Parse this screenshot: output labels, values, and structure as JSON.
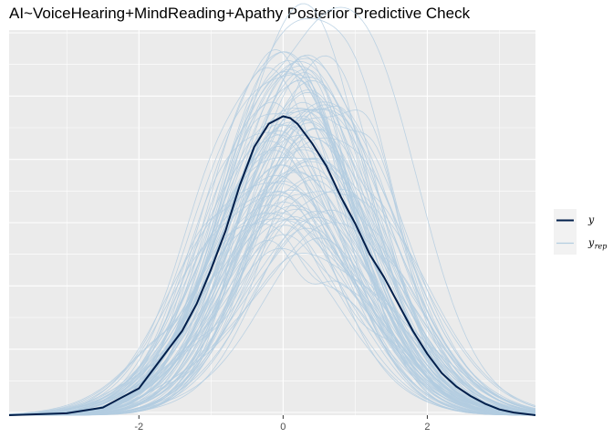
{
  "title": "AI~VoiceHearing+MindReading+Apathy Posterior Predictive Check",
  "chart_data": {
    "type": "line",
    "title": "AI~VoiceHearing+MindReading+Apathy Posterior Predictive Check",
    "xlabel": "",
    "ylabel": "",
    "xlim": [
      -3.8,
      3.5
    ],
    "ylim": [
      0,
      1
    ],
    "x_ticks": [
      "-2",
      "0",
      "2"
    ],
    "x_tick_values": [
      -2,
      0,
      2
    ],
    "y_axis_labels_shown": false,
    "grid": true,
    "legend_position": "right",
    "legend": [
      {
        "key": "y",
        "label": "y",
        "sub": ""
      },
      {
        "key": "yrep",
        "label": "y",
        "sub": "rep"
      }
    ],
    "colors": {
      "y": "#011f4b",
      "yrep": "#b3cde0",
      "panel": "#ebebeb",
      "grid": "#ffffff"
    },
    "series": [
      {
        "name": "y",
        "x": [
          -3.8,
          -3.0,
          -2.5,
          -2.0,
          -1.8,
          -1.6,
          -1.4,
          -1.2,
          -1.0,
          -0.8,
          -0.6,
          -0.4,
          -0.2,
          0.0,
          0.1,
          0.2,
          0.4,
          0.6,
          0.8,
          1.0,
          1.2,
          1.4,
          1.6,
          1.8,
          2.0,
          2.2,
          2.4,
          2.6,
          2.8,
          3.0,
          3.2,
          3.5
        ],
        "y": [
          0.0,
          0.005,
          0.02,
          0.07,
          0.12,
          0.17,
          0.22,
          0.29,
          0.38,
          0.48,
          0.6,
          0.7,
          0.76,
          0.78,
          0.775,
          0.76,
          0.71,
          0.65,
          0.57,
          0.5,
          0.42,
          0.36,
          0.29,
          0.22,
          0.16,
          0.11,
          0.075,
          0.05,
          0.03,
          0.015,
          0.007,
          0.0
        ]
      }
    ],
    "yrep": {
      "draws": 100,
      "mean_range": [
        -0.15,
        0.6
      ],
      "sd_range": [
        0.82,
        1.15
      ],
      "peak_range": [
        0.47,
        0.98
      ]
    }
  }
}
